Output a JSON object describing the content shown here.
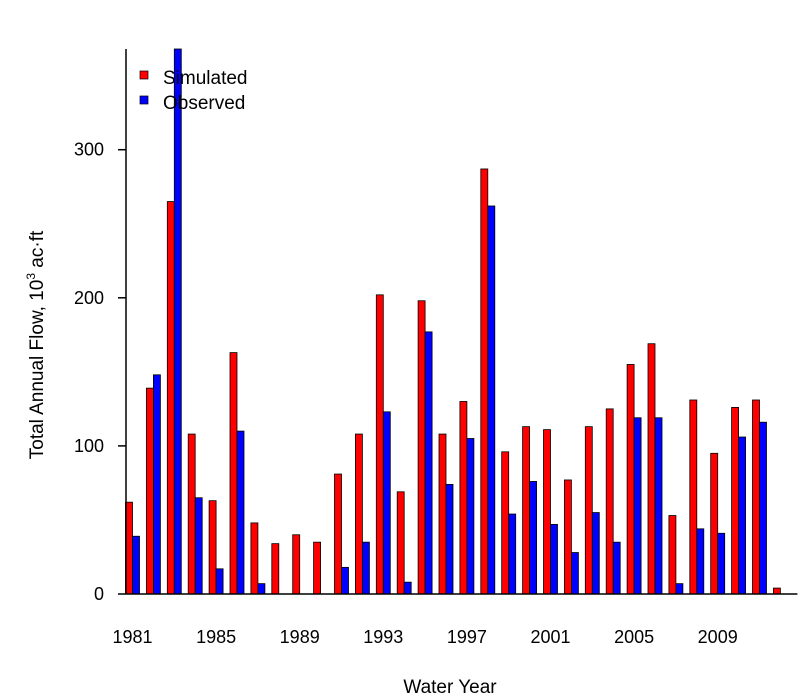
{
  "chart_data": {
    "type": "bar",
    "xlabel": "Water Year",
    "ylabel_main": "Total Annual Flow, 10",
    "ylabel_sup": "3",
    "ylabel_unit": " ac·ft",
    "ylim": [
      0,
      368
    ],
    "yticks": [
      0,
      100,
      200,
      300
    ],
    "xticks": [
      "1981",
      "1985",
      "1989",
      "1993",
      "1997",
      "2001",
      "2005",
      "2009"
    ],
    "categories": [
      "1981",
      "1982",
      "1983",
      "1984",
      "1985",
      "1986",
      "1987",
      "1988",
      "1989",
      "1990",
      "1991",
      "1992",
      "1993",
      "1994",
      "1995",
      "1996",
      "1997",
      "1998",
      "1999",
      "2000",
      "2001",
      "2002",
      "2003",
      "2004",
      "2005",
      "2006",
      "2007",
      "2008",
      "2009",
      "2010",
      "2011",
      "2012"
    ],
    "legend_position": "top-left",
    "series": [
      {
        "name": "Simulated",
        "color": "#ff0000",
        "values": [
          62,
          139,
          265,
          108,
          63,
          163,
          48,
          34,
          40,
          35,
          81,
          108,
          202,
          69,
          198,
          108,
          130,
          287,
          96,
          113,
          111,
          77,
          113,
          125,
          155,
          169,
          53,
          131,
          95,
          126,
          131,
          4
        ]
      },
      {
        "name": "Observed",
        "color": "#0000ff",
        "values": [
          39,
          148,
          368,
          65,
          17,
          110,
          7,
          0,
          0,
          0,
          18,
          35,
          123,
          8,
          177,
          74,
          105,
          262,
          54,
          76,
          47,
          28,
          55,
          35,
          119,
          119,
          7,
          44,
          41,
          106,
          116,
          0
        ]
      }
    ]
  }
}
